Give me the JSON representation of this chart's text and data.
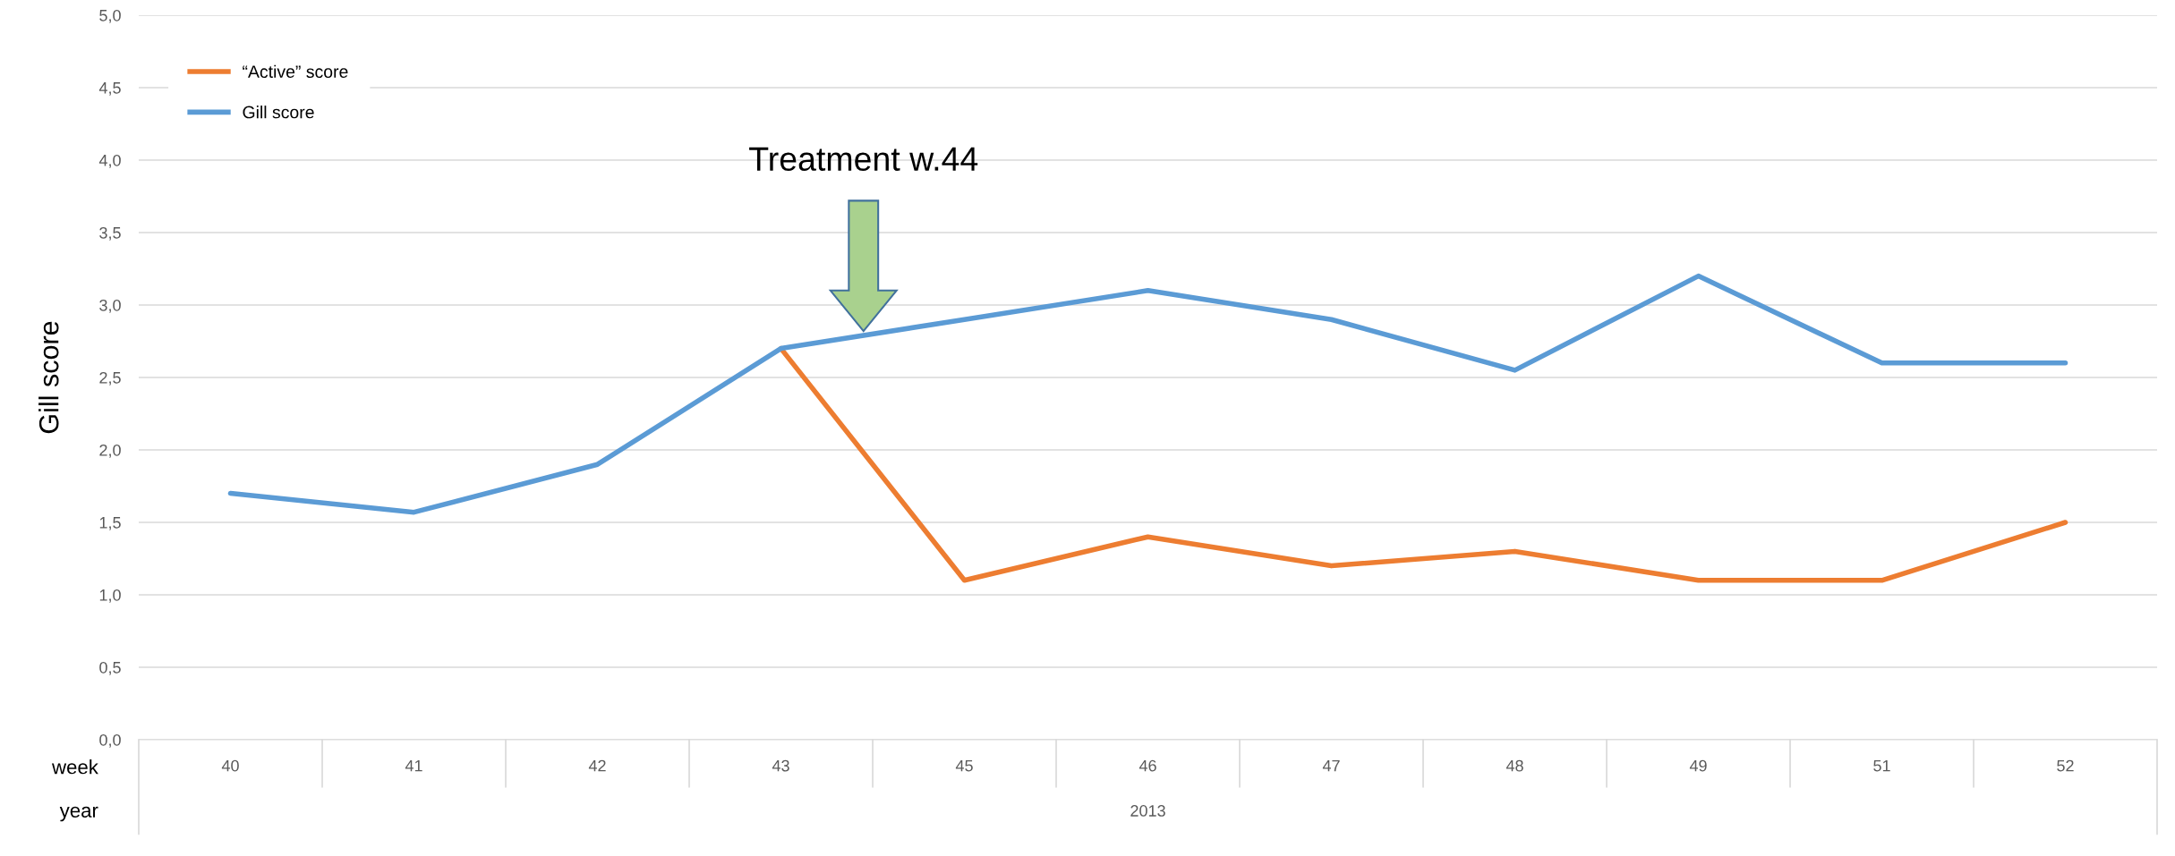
{
  "chart_data": {
    "type": "line",
    "ylabel": "Gill score",
    "categories": [
      "40",
      "41",
      "42",
      "43",
      "45",
      "46",
      "47",
      "48",
      "49",
      "51",
      "52"
    ],
    "series": [
      {
        "name": "“Active” score",
        "color": "#ed7d31",
        "values": [
          null,
          null,
          null,
          2.7,
          1.1,
          1.4,
          1.2,
          1.3,
          1.1,
          1.1,
          1.5
        ]
      },
      {
        "name": "Gill score",
        "color": "#5b9bd5",
        "values": [
          1.7,
          1.57,
          1.9,
          2.7,
          2.9,
          3.1,
          2.9,
          2.55,
          3.2,
          2.6,
          2.6
        ]
      }
    ],
    "ylim": [
      0,
      5
    ],
    "yticks": [
      {
        "value": 0,
        "label": "0,0"
      },
      {
        "value": 0.5,
        "label": "0,5"
      },
      {
        "value": 1,
        "label": "1,0"
      },
      {
        "value": 1.5,
        "label": "1,5"
      },
      {
        "value": 2,
        "label": "2,0"
      },
      {
        "value": 2.5,
        "label": "2,5"
      },
      {
        "value": 3,
        "label": "3,0"
      },
      {
        "value": 3.5,
        "label": "3,5"
      },
      {
        "value": 4,
        "label": "4,0"
      },
      {
        "value": 4.5,
        "label": "4,5"
      },
      {
        "value": 5,
        "label": "5,0"
      }
    ],
    "grid": "y",
    "legend": "top left",
    "marker": "none",
    "line_style": "solid",
    "annotations": [
      "Treatment w.44",
      "week",
      "year",
      "2013"
    ]
  }
}
